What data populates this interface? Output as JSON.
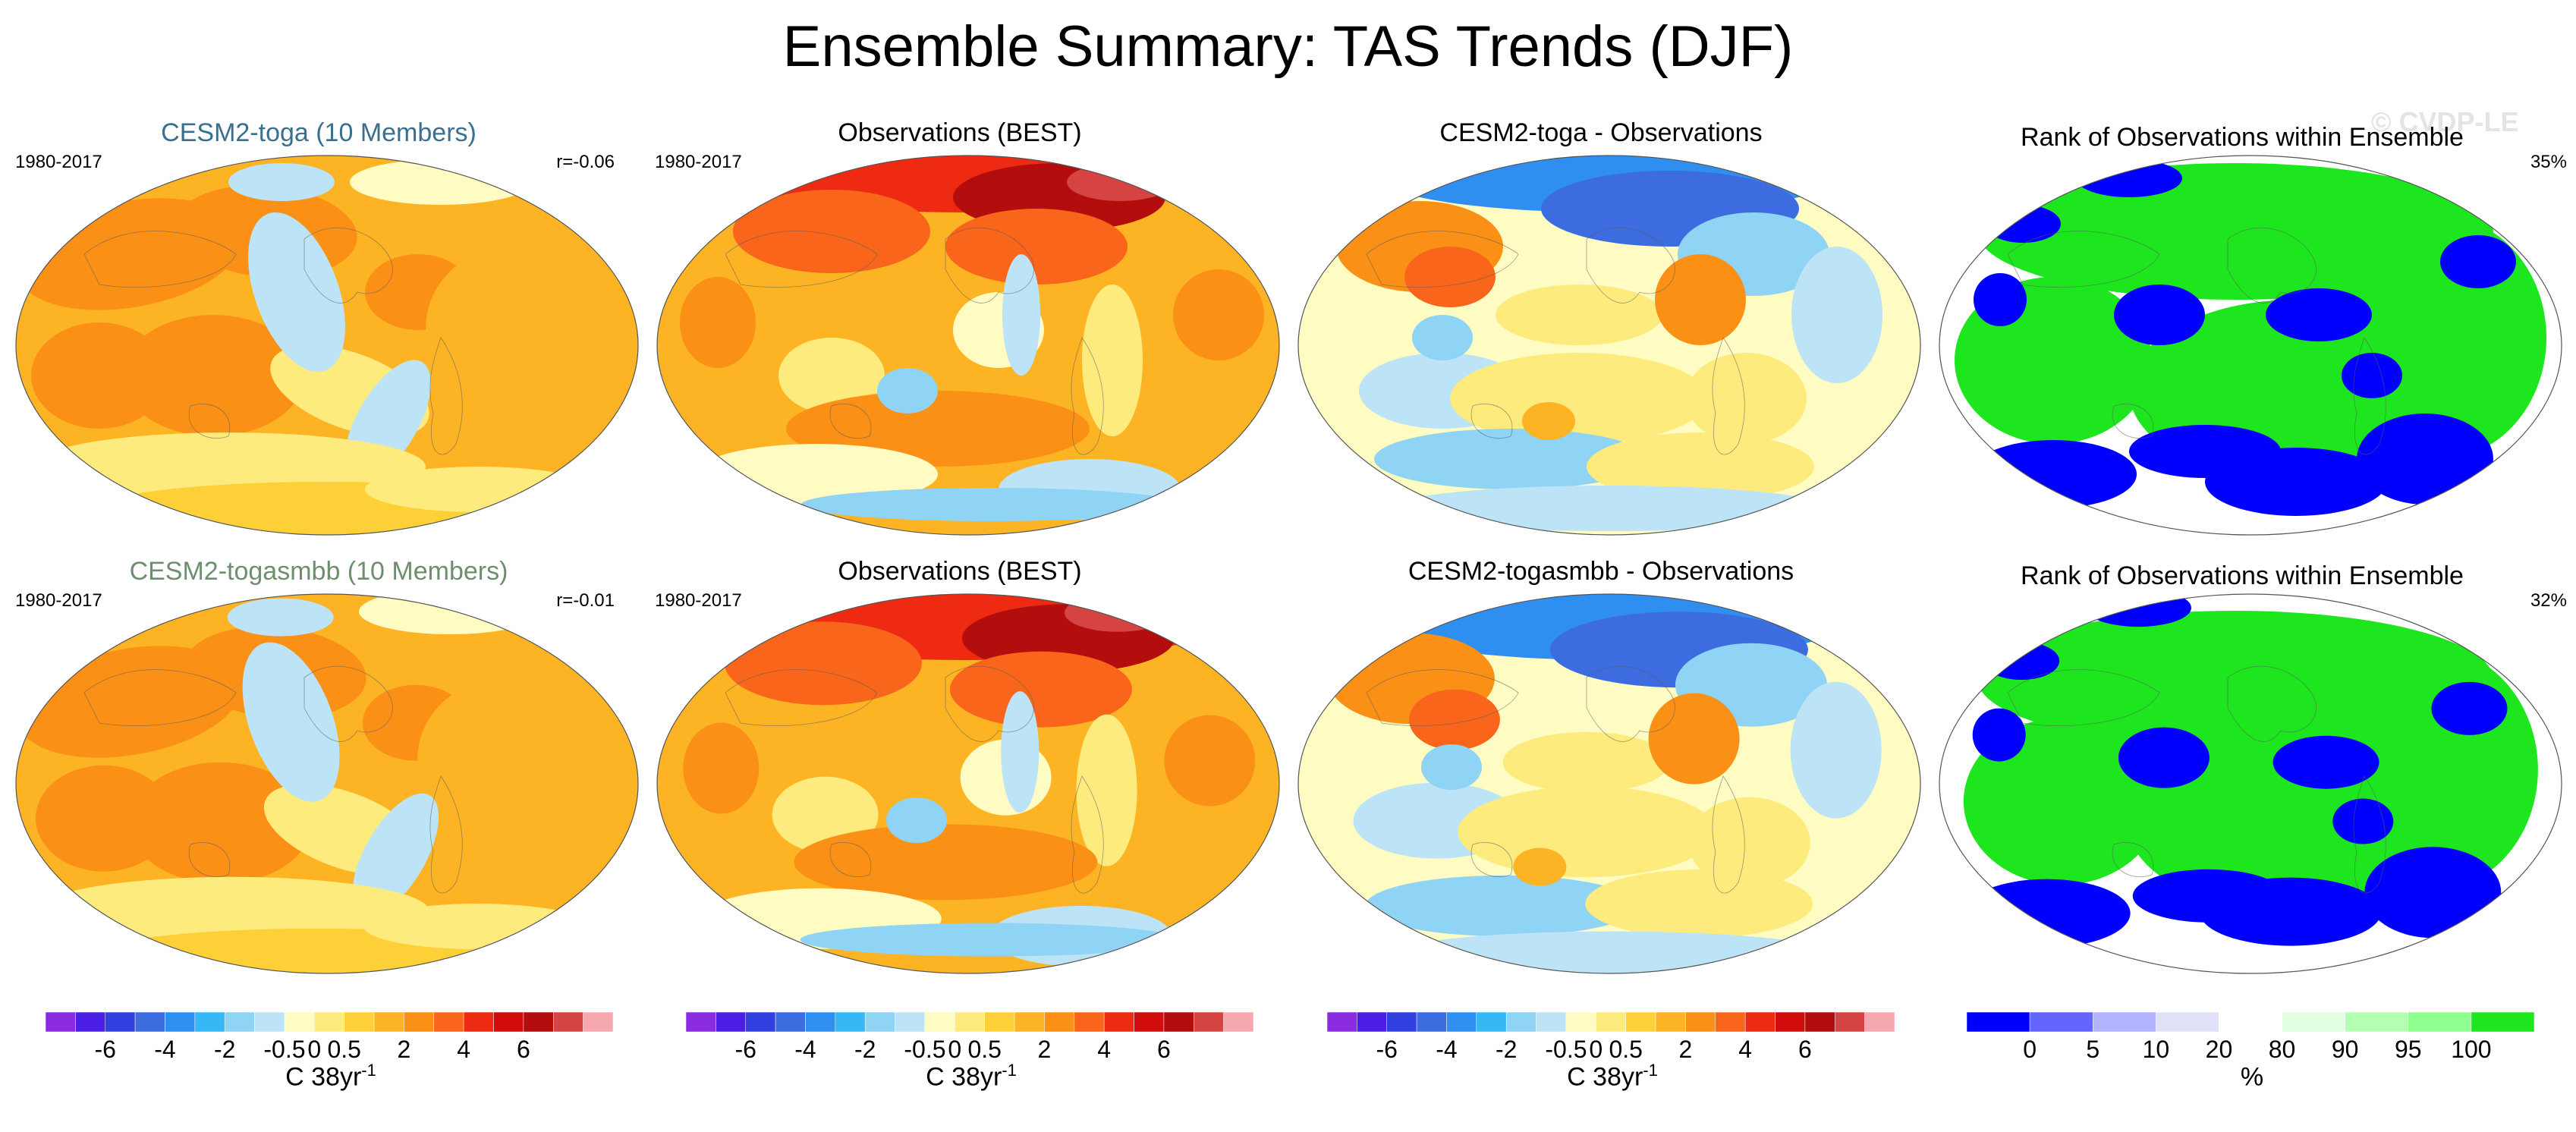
{
  "title": "Ensemble Summary: TAS Trends (DJF)",
  "watermark": "© CVDP-LE",
  "rows": [
    {
      "panels": [
        {
          "title": "CESM2-toga (10 Members)",
          "title_color": "#3a6f8f",
          "left": "1980-2017",
          "right": "r=-0.06",
          "kind": "model"
        },
        {
          "title": "Observations (BEST)",
          "title_color": "#000000",
          "left": "1980-2017",
          "right": "",
          "kind": "obs"
        },
        {
          "title": "CESM2-toga - Observations",
          "title_color": "#000000",
          "left": "",
          "right": "",
          "kind": "diff"
        },
        {
          "title": "Rank of Observations within Ensemble",
          "title_color": "#000000",
          "left": "",
          "right": "35%",
          "kind": "rank"
        }
      ]
    },
    {
      "panels": [
        {
          "title": "CESM2-togasmbb (10 Members)",
          "title_color": "#6e8f6e",
          "left": "1980-2017",
          "right": "r=-0.01",
          "kind": "model"
        },
        {
          "title": "Observations (BEST)",
          "title_color": "#000000",
          "left": "1980-2017",
          "right": "",
          "kind": "obs"
        },
        {
          "title": "CESM2-togasmbb - Observations",
          "title_color": "#000000",
          "left": "",
          "right": "",
          "kind": "diff"
        },
        {
          "title": "Rank of Observations within Ensemble",
          "title_color": "#000000",
          "left": "",
          "right": "32%",
          "kind": "rank"
        }
      ]
    }
  ],
  "colorbars": {
    "trend": {
      "label_main": "C 38yr",
      "label_sup": "-1",
      "colors": [
        "#8a2be2",
        "#4b1ee6",
        "#3141e0",
        "#3d6be0",
        "#2f8ff0",
        "#36b8f6",
        "#8fd3f5",
        "#bde3f6",
        "#fefcc3",
        "#feeb7e",
        "#fed038",
        "#fdb424",
        "#fb9017",
        "#f8651b",
        "#ef2a13",
        "#d10c0c",
        "#b30d0d",
        "#d54343",
        "#f7a8ae"
      ],
      "ticks": [
        {
          "label": "-6",
          "boundary": 2
        },
        {
          "label": "-4",
          "boundary": 4
        },
        {
          "label": "-2",
          "boundary": 6
        },
        {
          "label": "-0.5",
          "boundary": 8
        },
        {
          "label": "0",
          "boundary": 9
        },
        {
          "label": "0.5",
          "boundary": 10
        },
        {
          "label": "2",
          "boundary": 12
        },
        {
          "label": "4",
          "boundary": 14
        },
        {
          "label": "6",
          "boundary": 16
        }
      ]
    },
    "rank": {
      "label_main": "%",
      "label_sup": "",
      "colors": [
        "#0000ff",
        "#6464ff",
        "#b3b3ff",
        "#e0e0f8",
        "#ffffff",
        "#e0ffe0",
        "#b2ffb2",
        "#8fff8f",
        "#1ee61e"
      ],
      "ticks": [
        {
          "label": "0",
          "boundary": 1
        },
        {
          "label": "5",
          "boundary": 2
        },
        {
          "label": "10",
          "boundary": 3
        },
        {
          "label": "20",
          "boundary": 4
        },
        {
          "label": "80",
          "boundary": 5
        },
        {
          "label": "90",
          "boundary": 6
        },
        {
          "label": "95",
          "boundary": 7
        },
        {
          "label": "100",
          "boundary": 8
        }
      ]
    }
  },
  "chart_data": {
    "type": "heatmap",
    "title": "Ensemble Summary: TAS Trends (DJF)",
    "period": "1980-2017",
    "units": "C 38yr-1",
    "trend_contour_levels": [
      -6,
      -5,
      -4,
      -3,
      -2,
      -1,
      -0.5,
      -0.25,
      0,
      0.25,
      0.5,
      1,
      2,
      3,
      4,
      5,
      6,
      7
    ],
    "rank_levels_percent": [
      0,
      5,
      10,
      20,
      80,
      90,
      95,
      100
    ],
    "pattern_correlations": {
      "CESM2-toga": -0.06,
      "CESM2-togasmbb": -0.01
    },
    "rank_summary_percent": {
      "CESM2-toga": 35,
      "CESM2-togasmbb": 32
    }
  }
}
